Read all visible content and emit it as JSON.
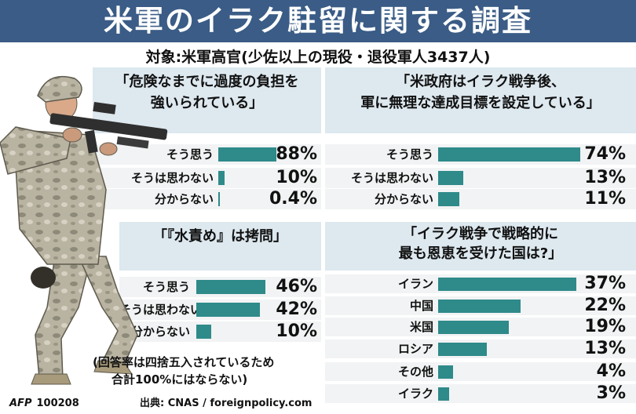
{
  "header": {
    "title": "米軍のイラク駐留に関する調査",
    "subtitle": "対象:米軍高官(少佐以上の現役・退役軍人3437人)"
  },
  "chart_data": [
    {
      "type": "bar",
      "title": "「危険なまでに過度の負担を強いられている」",
      "categories": [
        "そう思う",
        "そうは思わない",
        "分からない"
      ],
      "values": [
        88,
        10,
        0.4
      ],
      "value_labels": [
        "88%",
        "10%",
        "0.4%"
      ],
      "unit": "%",
      "xlim": [
        0,
        100
      ]
    },
    {
      "type": "bar",
      "title": "「米政府はイラク戦争後、軍に無理な達成目標を設定している」",
      "categories": [
        "そう思う",
        "そうは思わない",
        "分からない"
      ],
      "values": [
        74,
        13,
        11
      ],
      "value_labels": [
        "74%",
        "13%",
        "11%"
      ],
      "unit": "%",
      "xlim": [
        0,
        100
      ]
    },
    {
      "type": "bar",
      "title": "「『水責め』は拷問」",
      "categories": [
        "そう思う",
        "そうは思わない",
        "分からない"
      ],
      "values": [
        46,
        42,
        10
      ],
      "value_labels": [
        "46%",
        "42%",
        "10%"
      ],
      "unit": "%",
      "xlim": [
        0,
        100
      ]
    },
    {
      "type": "bar",
      "title": "「イラク戦争で戦略的に最も恩恵を受けた国は?」",
      "categories": [
        "イラン",
        "中国",
        "米国",
        "ロシア",
        "その他",
        "イラク"
      ],
      "values": [
        37,
        22,
        19,
        13,
        4,
        3
      ],
      "value_labels": [
        "37%",
        "22%",
        "19%",
        "13%",
        "4%",
        "3%"
      ],
      "unit": "%",
      "xlim": [
        0,
        100
      ]
    }
  ],
  "questions": {
    "q1": {
      "line1": "「危険なまでに過度の負担を",
      "line2": "強いられている」"
    },
    "q2": {
      "line1": "「米政府はイラク戦争後、",
      "line2": "軍に無理な達成目標を設定している」"
    },
    "q3": {
      "line1": "「『水責め』は拷問」"
    },
    "q4": {
      "line1": "「イラク戦争で戦略的に",
      "line2": "最も恩恵を受けた国は?」"
    }
  },
  "note": {
    "line1": "(回答率は四捨五入されているため",
    "line2": "合計100%にはならない)"
  },
  "footer": {
    "agency": "AFP",
    "code": "100208",
    "source": "出典: CNAS / foreignpolicy.com"
  },
  "colors": {
    "title_bg": "#3a5c86",
    "question_bg": "#dde8ef",
    "bar": "#2f8a8a",
    "row_bg": "#f1f3f4"
  },
  "illustration": {
    "icon": "soldier-with-rifle"
  }
}
